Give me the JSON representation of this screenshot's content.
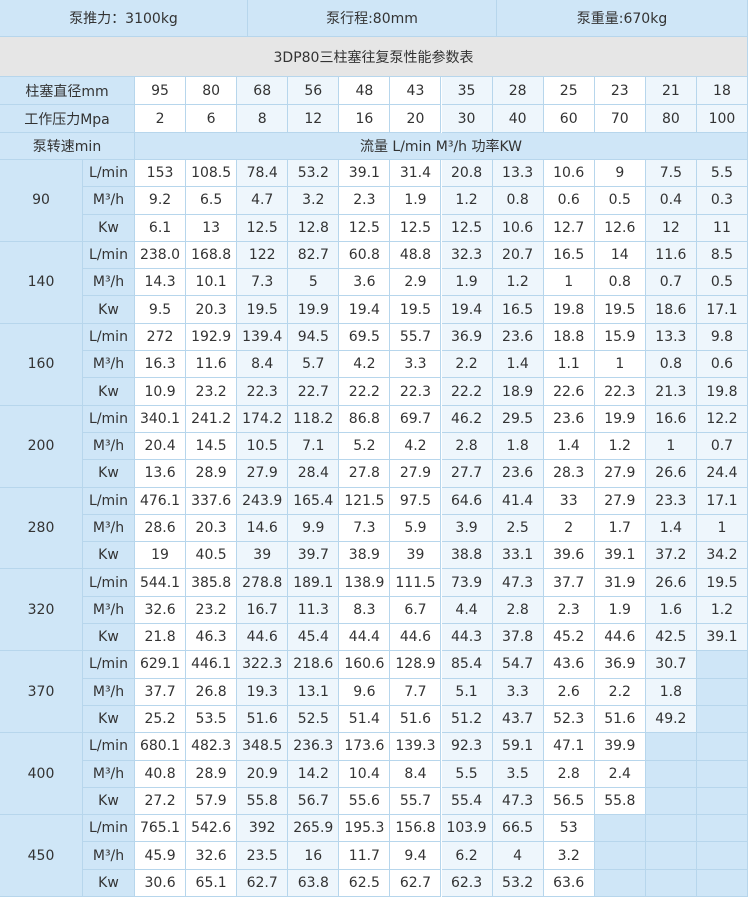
{
  "header": [
    "泵推力：3100kg",
    "泵行程:80mm",
    "泵重量:670kg"
  ],
  "title": "3DP80三柱塞往复泵性能参数表",
  "diameter": {
    "label": "柱塞直径mm",
    "values": [
      "95",
      "80",
      "68",
      "56",
      "48",
      "43",
      "35",
      "28",
      "25",
      "23",
      "21",
      "18"
    ]
  },
  "pressure": {
    "label": "工作压力Mpa",
    "values": [
      "2",
      "6",
      "8",
      "12",
      "16",
      "20",
      "30",
      "40",
      "60",
      "70",
      "80",
      "100"
    ]
  },
  "speed_header": {
    "label": "泵转速min",
    "caption": "流量 L/min M³/h  功率KW"
  },
  "groups": [
    {
      "speed": "90",
      "rows": [
        {
          "unit": "L/min",
          "values": [
            "153",
            "108.5",
            "78.4",
            "53.2",
            "39.1",
            "31.4",
            "20.8",
            "13.3",
            "10.6",
            "9",
            "7.5",
            "5.5"
          ]
        },
        {
          "unit": "M³/h",
          "values": [
            "9.2",
            "6.5",
            "4.7",
            "3.2",
            "2.3",
            "1.9",
            "1.2",
            "0.8",
            "0.6",
            "0.5",
            "0.4",
            "0.3"
          ]
        },
        {
          "unit": "Kw",
          "values": [
            "6.1",
            "13",
            "12.5",
            "12.8",
            "12.5",
            "12.5",
            "12.5",
            "10.6",
            "12.7",
            "12.6",
            "12",
            "11"
          ]
        }
      ]
    },
    {
      "speed": "140",
      "rows": [
        {
          "unit": "L/min",
          "values": [
            "238.0",
            "168.8",
            "122",
            "82.7",
            "60.8",
            "48.8",
            "32.3",
            "20.7",
            "16.5",
            "14",
            "11.6",
            "8.5"
          ]
        },
        {
          "unit": "M³/h",
          "values": [
            "14.3",
            "10.1",
            "7.3",
            "5",
            "3.6",
            "2.9",
            "1.9",
            "1.2",
            "1",
            "0.8",
            "0.7",
            "0.5"
          ]
        },
        {
          "unit": "Kw",
          "values": [
            "9.5",
            "20.3",
            "19.5",
            "19.9",
            "19.4",
            "19.5",
            "19.4",
            "16.5",
            "19.8",
            "19.5",
            "18.6",
            "17.1"
          ]
        }
      ]
    },
    {
      "speed": "160",
      "rows": [
        {
          "unit": "L/min",
          "values": [
            "272",
            "192.9",
            "139.4",
            "94.5",
            "69.5",
            "55.7",
            "36.9",
            "23.6",
            "18.8",
            "15.9",
            "13.3",
            "9.8"
          ]
        },
        {
          "unit": "M³/h",
          "values": [
            "16.3",
            "11.6",
            "8.4",
            "5.7",
            "4.2",
            "3.3",
            "2.2",
            "1.4",
            "1.1",
            "1",
            "0.8",
            "0.6"
          ]
        },
        {
          "unit": "Kw",
          "values": [
            "10.9",
            "23.2",
            "22.3",
            "22.7",
            "22.2",
            "22.3",
            "22.2",
            "18.9",
            "22.6",
            "22.3",
            "21.3",
            "19.8"
          ]
        }
      ]
    },
    {
      "speed": "200",
      "rows": [
        {
          "unit": "L/min",
          "values": [
            "340.1",
            "241.2",
            "174.2",
            "118.2",
            "86.8",
            "69.7",
            "46.2",
            "29.5",
            "23.6",
            "19.9",
            "16.6",
            "12.2"
          ]
        },
        {
          "unit": "M³/h",
          "values": [
            "20.4",
            "14.5",
            "10.5",
            "7.1",
            "5.2",
            "4.2",
            "2.8",
            "1.8",
            "1.4",
            "1.2",
            "1",
            "0.7"
          ]
        },
        {
          "unit": "Kw",
          "values": [
            "13.6",
            "28.9",
            "27.9",
            "28.4",
            "27.8",
            "27.9",
            "27.7",
            "23.6",
            "28.3",
            "27.9",
            "26.6",
            "24.4"
          ]
        }
      ]
    },
    {
      "speed": "280",
      "rows": [
        {
          "unit": "L/min",
          "values": [
            "476.1",
            "337.6",
            "243.9",
            "165.4",
            "121.5",
            "97.5",
            "64.6",
            "41.4",
            "33",
            "27.9",
            "23.3",
            "17.1"
          ]
        },
        {
          "unit": "M³/h",
          "values": [
            "28.6",
            "20.3",
            "14.6",
            "9.9",
            "7.3",
            "5.9",
            "3.9",
            "2.5",
            "2",
            "1.7",
            "1.4",
            "1"
          ]
        },
        {
          "unit": "Kw",
          "values": [
            "19",
            "40.5",
            "39",
            "39.7",
            "38.9",
            "39",
            "38.8",
            "33.1",
            "39.6",
            "39.1",
            "37.2",
            "34.2"
          ]
        }
      ]
    },
    {
      "speed": "320",
      "rows": [
        {
          "unit": "L/min",
          "values": [
            "544.1",
            "385.8",
            "278.8",
            "189.1",
            "138.9",
            "111.5",
            "73.9",
            "47.3",
            "37.7",
            "31.9",
            "26.6",
            "19.5"
          ]
        },
        {
          "unit": "M³/h",
          "values": [
            "32.6",
            "23.2",
            "16.7",
            "11.3",
            "8.3",
            "6.7",
            "4.4",
            "2.8",
            "2.3",
            "1.9",
            "1.6",
            "1.2"
          ]
        },
        {
          "unit": "Kw",
          "values": [
            "21.8",
            "46.3",
            "44.6",
            "45.4",
            "44.4",
            "44.6",
            "44.3",
            "37.8",
            "45.2",
            "44.6",
            "42.5",
            "39.1"
          ]
        }
      ]
    },
    {
      "speed": "370",
      "rows": [
        {
          "unit": "L/min",
          "values": [
            "629.1",
            "446.1",
            "322.3",
            "218.6",
            "160.6",
            "128.9",
            "85.4",
            "54.7",
            "43.6",
            "36.9",
            "30.7"
          ]
        },
        {
          "unit": "M³/h",
          "values": [
            "37.7",
            "26.8",
            "19.3",
            "13.1",
            "9.6",
            "7.7",
            "5.1",
            "3.3",
            "2.6",
            "2.2",
            "1.8"
          ]
        },
        {
          "unit": "Kw",
          "values": [
            "25.2",
            "53.5",
            "51.6",
            "52.5",
            "51.4",
            "51.6",
            "51.2",
            "43.7",
            "52.3",
            "51.6",
            "49.2"
          ]
        }
      ]
    },
    {
      "speed": "400",
      "rows": [
        {
          "unit": "L/min",
          "values": [
            "680.1",
            "482.3",
            "348.5",
            "236.3",
            "173.6",
            "139.3",
            "92.3",
            "59.1",
            "47.1",
            "39.9"
          ]
        },
        {
          "unit": "M³/h",
          "values": [
            "40.8",
            "28.9",
            "20.9",
            "14.2",
            "10.4",
            "8.4",
            "5.5",
            "3.5",
            "2.8",
            "2.4"
          ]
        },
        {
          "unit": "Kw",
          "values": [
            "27.2",
            "57.9",
            "55.8",
            "56.7",
            "55.6",
            "55.7",
            "55.4",
            "47.3",
            "56.5",
            "55.8"
          ]
        }
      ]
    },
    {
      "speed": "450",
      "rows": [
        {
          "unit": "L/min",
          "values": [
            "765.1",
            "542.6",
            "392",
            "265.9",
            "195.3",
            "156.8",
            "103.9",
            "66.5",
            "53"
          ]
        },
        {
          "unit": "M³/h",
          "values": [
            "45.9",
            "32.6",
            "23.5",
            "16",
            "11.7",
            "9.4",
            "6.2",
            "4",
            "3.2"
          ]
        },
        {
          "unit": "Kw",
          "values": [
            "30.6",
            "65.1",
            "62.7",
            "63.8",
            "62.5",
            "62.7",
            "62.3",
            "53.2",
            "63.6"
          ]
        }
      ]
    }
  ]
}
